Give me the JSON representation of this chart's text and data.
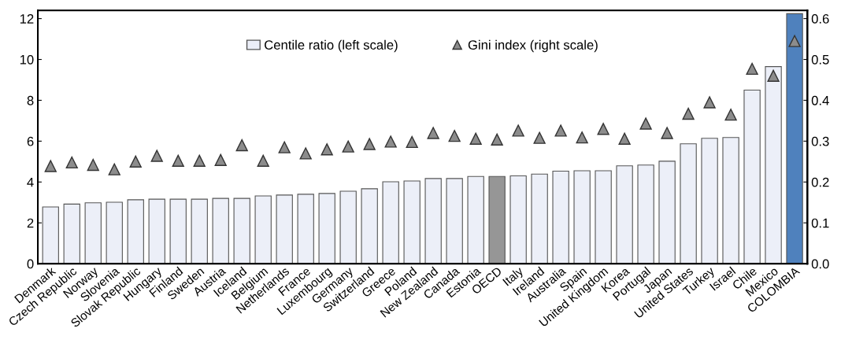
{
  "chart_data": {
    "type": "bar",
    "categories": [
      "Denmark",
      "Czech Republic",
      "Norway",
      "Slovenia",
      "Slovak Republic",
      "Hungary",
      "Finland",
      "Sweden",
      "Austria",
      "Iceland",
      "Belgium",
      "Netherlands",
      "France",
      "Luxembourg",
      "Germany",
      "Switzerland",
      "Greece",
      "Poland",
      "New Zealand",
      "Canada",
      "Estonia",
      "OECD",
      "Italy",
      "Ireland",
      "Australia",
      "Spain",
      "United Kingdom",
      "Korea",
      "Portugal",
      "Japan",
      "United States",
      "Turkey",
      "Israel",
      "Chile",
      "Mexico",
      "COLOMBIA"
    ],
    "series": [
      {
        "name": "Centile ratio (left scale)",
        "color": "#eceff8",
        "colors": [
          "#eceff8",
          "#eceff8",
          "#eceff8",
          "#eceff8",
          "#eceff8",
          "#eceff8",
          "#eceff8",
          "#eceff8",
          "#eceff8",
          "#eceff8",
          "#eceff8",
          "#eceff8",
          "#eceff8",
          "#eceff8",
          "#eceff8",
          "#eceff8",
          "#eceff8",
          "#eceff8",
          "#eceff8",
          "#eceff8",
          "#eceff8",
          "#969696",
          "#eceff8",
          "#eceff8",
          "#eceff8",
          "#eceff8",
          "#eceff8",
          "#eceff8",
          "#eceff8",
          "#eceff8",
          "#eceff8",
          "#eceff8",
          "#eceff8",
          "#eceff8",
          "#eceff8",
          "#4f81bd"
        ],
        "values": [
          2.78,
          2.92,
          2.98,
          3.01,
          3.13,
          3.16,
          3.16,
          3.16,
          3.2,
          3.2,
          3.32,
          3.36,
          3.4,
          3.44,
          3.55,
          3.67,
          4.01,
          4.05,
          4.17,
          4.17,
          4.27,
          4.27,
          4.3,
          4.39,
          4.53,
          4.55,
          4.55,
          4.79,
          4.83,
          5.02,
          5.87,
          6.14,
          6.18,
          8.5,
          9.65,
          12.24
        ]
      },
      {
        "name": "Gini index (right scale)",
        "type": "scatter",
        "axis": "y2",
        "marker": "triangle",
        "color": "#8c8c8c",
        "values": [
          0.239,
          0.248,
          0.242,
          0.231,
          0.25,
          0.264,
          0.252,
          0.252,
          0.254,
          0.29,
          0.252,
          0.285,
          0.27,
          0.28,
          0.287,
          0.293,
          0.299,
          0.298,
          0.32,
          0.313,
          0.306,
          0.304,
          0.326,
          0.308,
          0.326,
          0.309,
          0.33,
          0.306,
          0.343,
          0.32,
          0.367,
          0.395,
          0.365,
          0.477,
          0.46,
          0.545
        ]
      }
    ],
    "ylim": [
      0,
      12.4
    ],
    "yticks": [
      0,
      2,
      4,
      6,
      8,
      10,
      12
    ],
    "y2lim": [
      0,
      0.62
    ],
    "y2ticks": [
      {
        "value": 0,
        "label": "0.0"
      },
      0.1,
      0.2,
      0.3,
      0.4,
      0.5,
      0.6
    ],
    "legend": "top",
    "grid": false
  }
}
